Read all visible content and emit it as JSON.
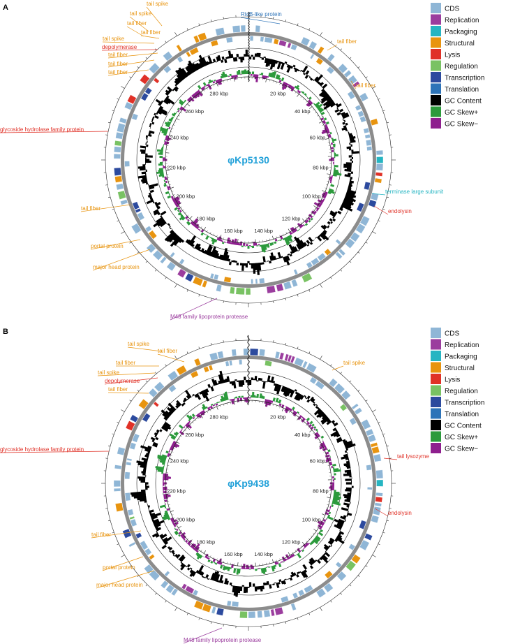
{
  "legend": [
    {
      "label": "CDS",
      "color": "#8fb6d6"
    },
    {
      "label": "Replication",
      "color": "#9b3d9e"
    },
    {
      "label": "Packaging",
      "color": "#26b5c2"
    },
    {
      "label": "Structural",
      "color": "#e8940f"
    },
    {
      "label": "Lysis",
      "color": "#e03127"
    },
    {
      "label": "Regulation",
      "color": "#79c263"
    },
    {
      "label": "Transcription",
      "color": "#2c4a9e"
    },
    {
      "label": "Translation",
      "color": "#2d73b8"
    },
    {
      "label": "GC Content",
      "color": "#000000"
    },
    {
      "label": "GC Skew+",
      "color": "#2c9a3c"
    },
    {
      "label": "GC Skew−",
      "color": "#8e1f8e"
    }
  ],
  "kbp_labels": [
    "20 kbp",
    "40 kbp",
    "60 kbp",
    "80 kbp",
    "100 kbp",
    "120 kbp",
    "140 kbp",
    "160 kbp",
    "180 kbp",
    "200 kbp",
    "220 kbp",
    "240 kbp",
    "260 kbp",
    "280 kbp"
  ],
  "colors": {
    "center_title": "#1e9fd8",
    "structural": "#e8940f",
    "lysis": "#e03127",
    "packaging": "#26b5c2",
    "translation": "#2d73b8",
    "replication": "#9b3d9e"
  },
  "panels": [
    {
      "letter": "A",
      "title": "φKp5130",
      "annotations": [
        {
          "text": "tail spike",
          "cat": "structural"
        },
        {
          "text": "tail spike",
          "cat": "structural"
        },
        {
          "text": "tail fiber",
          "cat": "structural"
        },
        {
          "text": "tail fiber",
          "cat": "structural"
        },
        {
          "text": "tail spike",
          "cat": "structural"
        },
        {
          "text": "depolymerase",
          "cat": "lysis"
        },
        {
          "text": "tail fiber",
          "cat": "structural"
        },
        {
          "text": "tail fiber",
          "cat": "structural"
        },
        {
          "text": "tail fiber",
          "cat": "structural"
        },
        {
          "text": "RtcB-like protein",
          "cat": "translation"
        },
        {
          "text": "tail fiber",
          "cat": "structural"
        },
        {
          "text": "tail fiber",
          "cat": "structural"
        },
        {
          "text": "glycoside hydrolase family protein",
          "cat": "lysis"
        },
        {
          "text": "terminase large subunit",
          "cat": "packaging"
        },
        {
          "text": "endolysin",
          "cat": "lysis"
        },
        {
          "text": "tail fiber",
          "cat": "structural"
        },
        {
          "text": "portal protein",
          "cat": "structural"
        },
        {
          "text": "major head protein",
          "cat": "structural"
        },
        {
          "text": "M48 family lipoprotein protease",
          "cat": "replication"
        }
      ]
    },
    {
      "letter": "B",
      "title": "φKp9438",
      "annotations": [
        {
          "text": "tail spike",
          "cat": "structural"
        },
        {
          "text": "tail fiber",
          "cat": "structural"
        },
        {
          "text": "tail fiber",
          "cat": "structural"
        },
        {
          "text": "tail spike",
          "cat": "structural"
        },
        {
          "text": "depolymerase",
          "cat": "lysis"
        },
        {
          "text": "tail fiber",
          "cat": "structural"
        },
        {
          "text": "tail spike",
          "cat": "structural"
        },
        {
          "text": "glycoside hydrolase family protein",
          "cat": "lysis"
        },
        {
          "text": "tail lysozyme",
          "cat": "lysis"
        },
        {
          "text": "endolysin",
          "cat": "lysis"
        },
        {
          "text": "tail fiber",
          "cat": "structural"
        },
        {
          "text": "portal protein",
          "cat": "structural"
        },
        {
          "text": "major head protein",
          "cat": "structural"
        },
        {
          "text": "M48 family lipoprotein protease",
          "cat": "replication"
        }
      ]
    }
  ]
}
